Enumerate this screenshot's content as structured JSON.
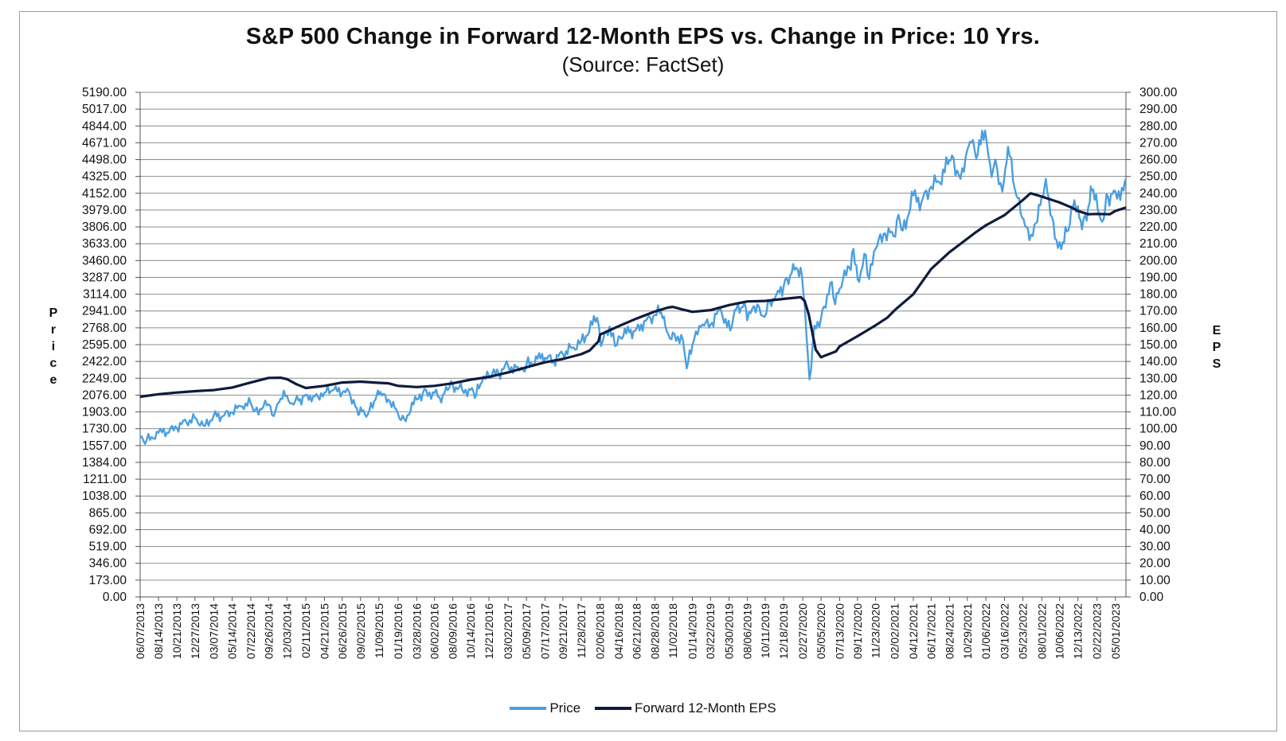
{
  "chart_data": {
    "type": "line",
    "title": "S&P 500 Change in Forward 12-Month EPS vs. Change in Price: 10 Yrs.",
    "subtitle": "(Source: FactSet)",
    "ylabel_left": "Price",
    "ylabel_right": "EPS",
    "y_left_ticks": [
      "0.00",
      "173.00",
      "346.00",
      "519.00",
      "692.00",
      "865.00",
      "1038.00",
      "1211.00",
      "1384.00",
      "1557.00",
      "1730.00",
      "1903.00",
      "2076.00",
      "2249.00",
      "2422.00",
      "2595.00",
      "2768.00",
      "2941.00",
      "3114.00",
      "3287.00",
      "3460.00",
      "3633.00",
      "3806.00",
      "3979.00",
      "4152.00",
      "4325.00",
      "4498.00",
      "4671.00",
      "4844.00",
      "5017.00",
      "5190.00"
    ],
    "y_right_ticks": [
      "0.00",
      "10.00",
      "20.00",
      "30.00",
      "40.00",
      "50.00",
      "60.00",
      "70.00",
      "80.00",
      "90.00",
      "100.00",
      "110.00",
      "120.00",
      "130.00",
      "140.00",
      "150.00",
      "160.00",
      "170.00",
      "180.00",
      "190.00",
      "200.00",
      "210.00",
      "220.00",
      "230.00",
      "240.00",
      "250.00",
      "260.00",
      "270.00",
      "280.00",
      "290.00",
      "300.00"
    ],
    "ylim_left": [
      0,
      5190
    ],
    "ylim_right": [
      0,
      300
    ],
    "x_ticks": [
      "06/07/2013",
      "08/14/2013",
      "10/21/2013",
      "12/27/2013",
      "03/07/2014",
      "05/14/2014",
      "07/22/2014",
      "09/26/2014",
      "12/03/2014",
      "02/11/2015",
      "04/21/2015",
      "06/26/2015",
      "09/02/2015",
      "11/09/2015",
      "01/19/2016",
      "03/28/2016",
      "06/02/2016",
      "08/09/2016",
      "10/14/2016",
      "12/21/2016",
      "03/02/2017",
      "05/09/2017",
      "07/17/2017",
      "09/21/2017",
      "11/28/2017",
      "02/06/2018",
      "04/16/2018",
      "06/21/2018",
      "08/28/2018",
      "11/02/2018",
      "01/14/2019",
      "03/22/2019",
      "05/30/2019",
      "08/06/2019",
      "10/11/2019",
      "12/18/2019",
      "02/27/2020",
      "05/05/2020",
      "07/13/2020",
      "09/17/2020",
      "11/23/2020",
      "02/02/2021",
      "04/12/2021",
      "06/17/2021",
      "08/24/2021",
      "10/29/2021",
      "01/06/2022",
      "03/16/2022",
      "05/23/2022",
      "08/01/2022",
      "10/06/2022",
      "12/13/2022",
      "02/22/2023",
      "05/01/2023"
    ],
    "grid": true,
    "legend_position": "bottom-center",
    "series": [
      {
        "name": "Price",
        "axis": "left",
        "color": "#4a9fe0",
        "points": [
          [
            "06/07/2013",
            1640
          ],
          [
            "07/01/2013",
            1610
          ],
          [
            "08/14/2013",
            1690
          ],
          [
            "09/15/2013",
            1690
          ],
          [
            "10/21/2013",
            1740
          ],
          [
            "11/25/2013",
            1800
          ],
          [
            "12/27/2013",
            1840
          ],
          [
            "02/03/2014",
            1760
          ],
          [
            "03/07/2014",
            1870
          ],
          [
            "04/10/2014",
            1860
          ],
          [
            "05/14/2014",
            1900
          ],
          [
            "06/20/2014",
            1960
          ],
          [
            "07/22/2014",
            1990
          ],
          [
            "08/07/2014",
            1920
          ],
          [
            "09/26/2014",
            1980
          ],
          [
            "10/15/2014",
            1860
          ],
          [
            "11/10/2014",
            2040
          ],
          [
            "12/03/2014",
            2070
          ],
          [
            "12/16/2014",
            1990
          ],
          [
            "01/15/2015",
            2020
          ],
          [
            "02/11/2015",
            2080
          ],
          [
            "03/10/2015",
            2060
          ],
          [
            "04/21/2015",
            2100
          ],
          [
            "05/21/2015",
            2125
          ],
          [
            "06/26/2015",
            2100
          ],
          [
            "07/20/2015",
            2120
          ],
          [
            "08/25/2015",
            1870
          ],
          [
            "09/02/2015",
            1950
          ],
          [
            "09/29/2015",
            1880
          ],
          [
            "11/03/2015",
            2100
          ],
          [
            "11/09/2015",
            2080
          ],
          [
            "12/14/2015",
            2030
          ],
          [
            "01/19/2016",
            1880
          ],
          [
            "02/11/2016",
            1830
          ],
          [
            "03/28/2016",
            2030
          ],
          [
            "04/20/2016",
            2100
          ],
          [
            "06/02/2016",
            2100
          ],
          [
            "06/27/2016",
            2000
          ],
          [
            "07/15/2016",
            2160
          ],
          [
            "08/09/2016",
            2180
          ],
          [
            "09/13/2016",
            2130
          ],
          [
            "10/14/2016",
            2130
          ],
          [
            "11/04/2016",
            2085
          ],
          [
            "11/25/2016",
            2210
          ],
          [
            "12/21/2016",
            2270
          ],
          [
            "01/26/2017",
            2300
          ],
          [
            "03/02/2017",
            2380
          ],
          [
            "04/13/2017",
            2330
          ],
          [
            "05/09/2017",
            2390
          ],
          [
            "06/19/2017",
            2450
          ],
          [
            "07/17/2017",
            2460
          ],
          [
            "08/18/2017",
            2420
          ],
          [
            "09/21/2017",
            2500
          ],
          [
            "10/25/2017",
            2560
          ],
          [
            "11/28/2017",
            2630
          ],
          [
            "01/26/2018",
            2870
          ],
          [
            "02/09/2018",
            2580
          ],
          [
            "03/13/2018",
            2780
          ],
          [
            "04/02/2018",
            2580
          ],
          [
            "04/16/2018",
            2680
          ],
          [
            "05/25/2018",
            2720
          ],
          [
            "06/21/2018",
            2760
          ],
          [
            "07/25/2018",
            2840
          ],
          [
            "08/28/2018",
            2900
          ],
          [
            "09/20/2018",
            2930
          ],
          [
            "10/11/2018",
            2730
          ],
          [
            "10/29/2018",
            2650
          ],
          [
            "11/02/2018",
            2720
          ],
          [
            "12/10/2018",
            2640
          ],
          [
            "12/24/2018",
            2350
          ],
          [
            "01/14/2019",
            2590
          ],
          [
            "02/15/2019",
            2780
          ],
          [
            "03/22/2019",
            2800
          ],
          [
            "04/30/2019",
            2950
          ],
          [
            "06/03/2019",
            2740
          ],
          [
            "06/20/2019",
            2950
          ],
          [
            "07/26/2019",
            3025
          ],
          [
            "08/05/2019",
            2845
          ],
          [
            "09/12/2019",
            3010
          ],
          [
            "10/02/2019",
            2890
          ],
          [
            "10/28/2019",
            3040
          ],
          [
            "11/27/2019",
            3150
          ],
          [
            "12/18/2019",
            3190
          ],
          [
            "01/17/2020",
            3330
          ],
          [
            "02/19/2020",
            3386
          ],
          [
            "03/05/2020",
            3020
          ],
          [
            "03/23/2020",
            2237
          ],
          [
            "04/10/2020",
            2790
          ],
          [
            "05/05/2020",
            2870
          ],
          [
            "06/08/2020",
            3230
          ],
          [
            "06/26/2020",
            3010
          ],
          [
            "07/13/2020",
            3170
          ],
          [
            "08/18/2020",
            3390
          ],
          [
            "09/02/2020",
            3580
          ],
          [
            "09/23/2020",
            3240
          ],
          [
            "10/12/2020",
            3530
          ],
          [
            "10/30/2020",
            3270
          ],
          [
            "11/23/2020",
            3580
          ],
          [
            "12/28/2020",
            3740
          ],
          [
            "01/29/2021",
            3710
          ],
          [
            "02/16/2021",
            3930
          ],
          [
            "03/04/2021",
            3770
          ],
          [
            "04/12/2021",
            4130
          ],
          [
            "05/12/2021",
            4060
          ],
          [
            "06/17/2021",
            4220
          ],
          [
            "07/19/2021",
            4260
          ],
          [
            "08/24/2021",
            4490
          ],
          [
            "09/02/2021",
            4540
          ],
          [
            "10/04/2021",
            4300
          ],
          [
            "10/29/2021",
            4600
          ],
          [
            "11/19/2021",
            4700
          ],
          [
            "12/01/2021",
            4510
          ],
          [
            "01/03/2022",
            4796
          ],
          [
            "01/27/2022",
            4320
          ],
          [
            "02/10/2022",
            4500
          ],
          [
            "03/08/2022",
            4170
          ],
          [
            "03/29/2022",
            4630
          ],
          [
            "04/29/2022",
            4130
          ],
          [
            "05/20/2022",
            3900
          ],
          [
            "06/16/2022",
            3670
          ],
          [
            "07/05/2022",
            3830
          ],
          [
            "08/01/2022",
            4120
          ],
          [
            "08/16/2022",
            4300
          ],
          [
            "09/02/2022",
            3930
          ],
          [
            "09/30/2022",
            3590
          ],
          [
            "10/12/2022",
            3577
          ],
          [
            "11/02/2022",
            3760
          ],
          [
            "11/30/2022",
            4080
          ],
          [
            "12/13/2022",
            4020
          ],
          [
            "12/28/2022",
            3780
          ],
          [
            "01/26/2023",
            4060
          ],
          [
            "02/02/2023",
            4180
          ],
          [
            "03/13/2023",
            3860
          ],
          [
            "04/03/2023",
            4120
          ],
          [
            "05/01/2023",
            4170
          ],
          [
            "05/31/2023",
            4180
          ],
          [
            "06/09/2023",
            4300
          ]
        ]
      },
      {
        "name": "Forward 12-Month EPS",
        "axis": "right",
        "color": "#0f1b3d",
        "points": [
          [
            "06/07/2013",
            119
          ],
          [
            "08/14/2013",
            120.5
          ],
          [
            "10/21/2013",
            121.5
          ],
          [
            "12/27/2013",
            122.3
          ],
          [
            "03/07/2014",
            123
          ],
          [
            "05/14/2014",
            124.5
          ],
          [
            "07/22/2014",
            127.5
          ],
          [
            "09/26/2014",
            130.2
          ],
          [
            "11/10/2014",
            130.3
          ],
          [
            "12/03/2014",
            129.5
          ],
          [
            "01/07/2015",
            126.5
          ],
          [
            "02/11/2015",
            124.2
          ],
          [
            "04/21/2015",
            125.5
          ],
          [
            "06/26/2015",
            127.5
          ],
          [
            "09/02/2015",
            128
          ],
          [
            "11/09/2015",
            127.3
          ],
          [
            "12/14/2015",
            127
          ],
          [
            "01/19/2016",
            125.5
          ],
          [
            "03/28/2016",
            124.8
          ],
          [
            "06/02/2016",
            125.5
          ],
          [
            "08/09/2016",
            127
          ],
          [
            "10/14/2016",
            129.2
          ],
          [
            "12/21/2016",
            130.8
          ],
          [
            "03/02/2017",
            133.5
          ],
          [
            "05/09/2017",
            136.5
          ],
          [
            "07/17/2017",
            139.5
          ],
          [
            "09/21/2017",
            141.5
          ],
          [
            "11/28/2017",
            144.3
          ],
          [
            "12/29/2017",
            146.5
          ],
          [
            "01/31/2018",
            152
          ],
          [
            "02/06/2018",
            156
          ],
          [
            "04/16/2018",
            161
          ],
          [
            "06/21/2018",
            165.5
          ],
          [
            "08/28/2018",
            169.7
          ],
          [
            "10/15/2018",
            172
          ],
          [
            "11/02/2018",
            172.5
          ],
          [
            "12/05/2018",
            171
          ],
          [
            "01/14/2019",
            169.5
          ],
          [
            "03/22/2019",
            170.5
          ],
          [
            "05/30/2019",
            173.5
          ],
          [
            "08/06/2019",
            175.7
          ],
          [
            "10/11/2019",
            176
          ],
          [
            "12/18/2019",
            177.2
          ],
          [
            "02/20/2020",
            178.2
          ],
          [
            "03/05/2020",
            176
          ],
          [
            "03/20/2020",
            168
          ],
          [
            "04/15/2020",
            147
          ],
          [
            "05/05/2020",
            142.5
          ],
          [
            "05/20/2020",
            143.5
          ],
          [
            "06/29/2020",
            146
          ],
          [
            "07/13/2020",
            149
          ],
          [
            "09/17/2020",
            155
          ],
          [
            "11/23/2020",
            161.5
          ],
          [
            "01/05/2021",
            166
          ],
          [
            "02/02/2021",
            170.5
          ],
          [
            "04/12/2021",
            180
          ],
          [
            "06/17/2021",
            195
          ],
          [
            "08/24/2021",
            205
          ],
          [
            "10/29/2021",
            213
          ],
          [
            "12/01/2021",
            217
          ],
          [
            "01/06/2022",
            221
          ],
          [
            "03/16/2022",
            227
          ],
          [
            "05/23/2022",
            236
          ],
          [
            "06/20/2022",
            240
          ],
          [
            "07/12/2022",
            239
          ],
          [
            "08/01/2022",
            238
          ],
          [
            "10/06/2022",
            234.5
          ],
          [
            "11/20/2022",
            231.5
          ],
          [
            "12/13/2022",
            229.5
          ],
          [
            "01/20/2023",
            227.5
          ],
          [
            "02/22/2023",
            227.7
          ],
          [
            "04/10/2023",
            227.5
          ],
          [
            "05/01/2023",
            229.5
          ],
          [
            "06/09/2023",
            231.5
          ]
        ]
      }
    ]
  }
}
